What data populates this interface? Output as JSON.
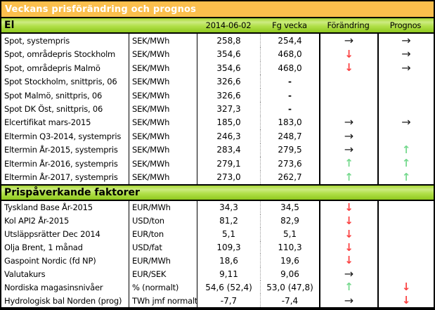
{
  "title": "Veckans prisförändring och prognos",
  "columns": [
    "2014-06-02",
    "Fg vecka",
    "Förändring",
    "Prognos"
  ],
  "colors": {
    "banner_bg": "#fbbf4c",
    "band_green": "#a5d933",
    "arrow_black": "#1a1a1a",
    "arrow_red": "#fb4343",
    "arrow_green": "#76d98e"
  },
  "arrows": {
    "right": {
      "glyph": "→",
      "name": "arrow-right-icon",
      "color": "#1a1a1a"
    },
    "down": {
      "glyph": "↓",
      "name": "arrow-down-icon",
      "color": "#fb4343"
    },
    "up": {
      "glyph": "↑",
      "name": "arrow-up-icon",
      "color": "#76d98e"
    }
  },
  "sections": [
    {
      "title": "El",
      "rows": [
        {
          "label": "Spot, systempris",
          "unit": "SEK/MWh",
          "current": "258,8",
          "previous": "254,4",
          "change": "right",
          "forecast": "right"
        },
        {
          "label": "Spot, områdepris Stockholm",
          "unit": "SEK/MWh",
          "current": "354,6",
          "previous": "468,0",
          "change": "down",
          "forecast": "right"
        },
        {
          "label": "Spot, områdepris Malmö",
          "unit": "SEK/MWh",
          "current": "354,6",
          "previous": "468,0",
          "change": "down",
          "forecast": "right"
        },
        {
          "label": "Spot Stockholm, snittpris,  06",
          "unit": "SEK/MWh",
          "current": "326,6",
          "previous": "-",
          "change": "",
          "forecast": ""
        },
        {
          "label": "Spot Malmö, snittpris,  06",
          "unit": "SEK/MWh",
          "current": "326,6",
          "previous": "-",
          "change": "",
          "forecast": ""
        },
        {
          "label": "Spot DK Öst, snittpris,  06",
          "unit": "SEK/MWh",
          "current": "327,3",
          "previous": "-",
          "change": "",
          "forecast": ""
        },
        {
          "label": "Elcertifikat mars-2015",
          "unit": "SEK/MWh",
          "current": "185,0",
          "previous": "183,0",
          "change": "right",
          "forecast": "right"
        },
        {
          "label": "Eltermin Q3-2014, systempris",
          "unit": "SEK/MWh",
          "current": "246,3",
          "previous": "248,7",
          "change": "right",
          "forecast": ""
        },
        {
          "label": "Eltermin År-2015, systempris",
          "unit": "SEK/MWh",
          "current": "283,4",
          "previous": "279,5",
          "change": "right",
          "forecast": "up"
        },
        {
          "label": "Eltermin År-2016, systempris",
          "unit": "SEK/MWh",
          "current": "279,1",
          "previous": "273,6",
          "change": "up",
          "forecast": "up"
        },
        {
          "label": "Eltermin År-2017, systempris",
          "unit": "SEK/MWh",
          "current": "273,0",
          "previous": "262,7",
          "change": "up",
          "forecast": "up"
        }
      ]
    },
    {
      "title": "Prispåverkande faktorer",
      "rows": [
        {
          "label": "Tyskland Base År-2015",
          "unit": "EUR/MWh",
          "current": "34,3",
          "previous": "34,5",
          "change": "down",
          "forecast": ""
        },
        {
          "label": "Kol API2 År-2015",
          "unit": "USD/ton",
          "current": "81,2",
          "previous": "82,9",
          "change": "down",
          "forecast": ""
        },
        {
          "label": "Utsläppsrätter Dec 2014",
          "unit": "EUR/ton",
          "current": "5,1",
          "previous": "5,1",
          "change": "down",
          "forecast": ""
        },
        {
          "label": "Olja Brent, 1 månad",
          "unit": "USD/fat",
          "current": "109,3",
          "previous": "110,3",
          "change": "down",
          "forecast": ""
        },
        {
          "label": "Gaspoint Nordic (fd NP)",
          "unit": "EUR/MWh",
          "current": "18,6",
          "previous": "19,6",
          "change": "down",
          "forecast": ""
        },
        {
          "label": "Valutakurs",
          "unit": "EUR/SEK",
          "current": "9,11",
          "previous": "9,06",
          "change": "right",
          "forecast": ""
        },
        {
          "label": "Nordiska magasinsnivåer",
          "unit": "%   (normalt)",
          "current": "54,6 (52,4)",
          "previous": "53,0 (47,8)",
          "change": "up",
          "forecast": "down"
        },
        {
          "label": "Hydrologisk bal Norden (prog)",
          "unit": "TWh jmf normalt",
          "current": "-7,7",
          "previous": "-7,4",
          "change": "right",
          "forecast": "down"
        }
      ]
    }
  ]
}
